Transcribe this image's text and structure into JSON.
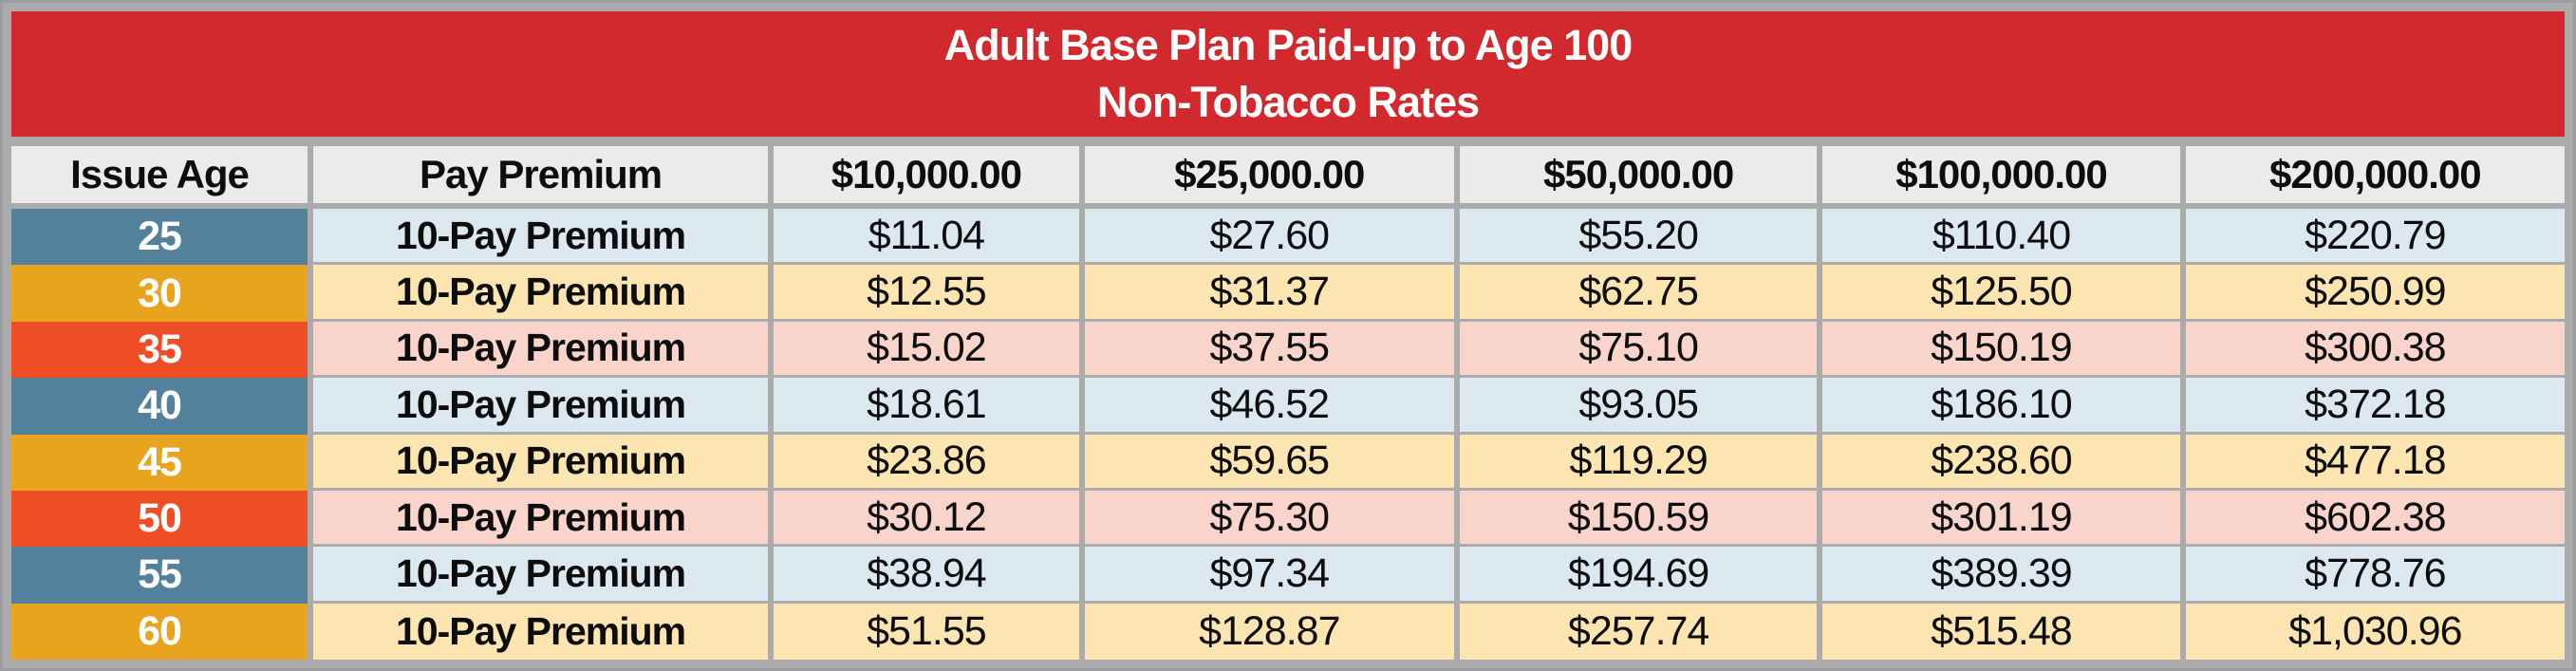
{
  "banner": {
    "title_line1": "Adult Base Plan Paid-up to Age 100",
    "title_line2": "Non-Tobacco Rates"
  },
  "header": {
    "columns": [
      "Issue Age",
      "Pay Premium",
      "$10,000.00",
      "$25,000.00",
      "$50,000.00",
      "$100,000.00",
      "$200,000.00"
    ]
  },
  "rows": [
    {
      "issue_age": "25",
      "pay_premium": "10-Pay Premium",
      "values": [
        "$11.04",
        "$27.60",
        "$55.20",
        "$110.40",
        "$220.79"
      ],
      "age_color": "blue",
      "tint": "blue"
    },
    {
      "issue_age": "30",
      "pay_premium": "10-Pay Premium",
      "values": [
        "$12.55",
        "$31.37",
        "$62.75",
        "$125.50",
        "$250.99"
      ],
      "age_color": "gold",
      "tint": "gold"
    },
    {
      "issue_age": "35",
      "pay_premium": "10-Pay Premium",
      "values": [
        "$15.02",
        "$37.55",
        "$75.10",
        "$150.19",
        "$300.38"
      ],
      "age_color": "red",
      "tint": "red"
    },
    {
      "issue_age": "40",
      "pay_premium": "10-Pay Premium",
      "values": [
        "$18.61",
        "$46.52",
        "$93.05",
        "$186.10",
        "$372.18"
      ],
      "age_color": "blue",
      "tint": "blue"
    },
    {
      "issue_age": "45",
      "pay_premium": "10-Pay Premium",
      "values": [
        "$23.86",
        "$59.65",
        "$119.29",
        "$238.60",
        "$477.18"
      ],
      "age_color": "gold",
      "tint": "gold"
    },
    {
      "issue_age": "50",
      "pay_premium": "10-Pay Premium",
      "values": [
        "$30.12",
        "$75.30",
        "$150.59",
        "$301.19",
        "$602.38"
      ],
      "age_color": "red",
      "tint": "red"
    },
    {
      "issue_age": "55",
      "pay_premium": "10-Pay Premium",
      "values": [
        "$38.94",
        "$97.34",
        "$194.69",
        "$389.39",
        "$778.76"
      ],
      "age_color": "blue",
      "tint": "blue"
    },
    {
      "issue_age": "60",
      "pay_premium": "10-Pay Premium",
      "values": [
        "$51.55",
        "$128.87",
        "$257.74",
        "$515.48",
        "$1,030.96"
      ],
      "age_color": "gold",
      "tint": "gold"
    }
  ],
  "palette": {
    "banner_red": "#D2292F",
    "header_bg": "#EBEBEB",
    "grid_gray": "#ABABAB",
    "age_blue": "#53809B",
    "age_gold": "#E8A41F",
    "age_red": "#EE4D26",
    "tint_blue": "#DCE8EF",
    "tint_gold": "#FCE5B0",
    "tint_red": "#F9D4CB"
  }
}
